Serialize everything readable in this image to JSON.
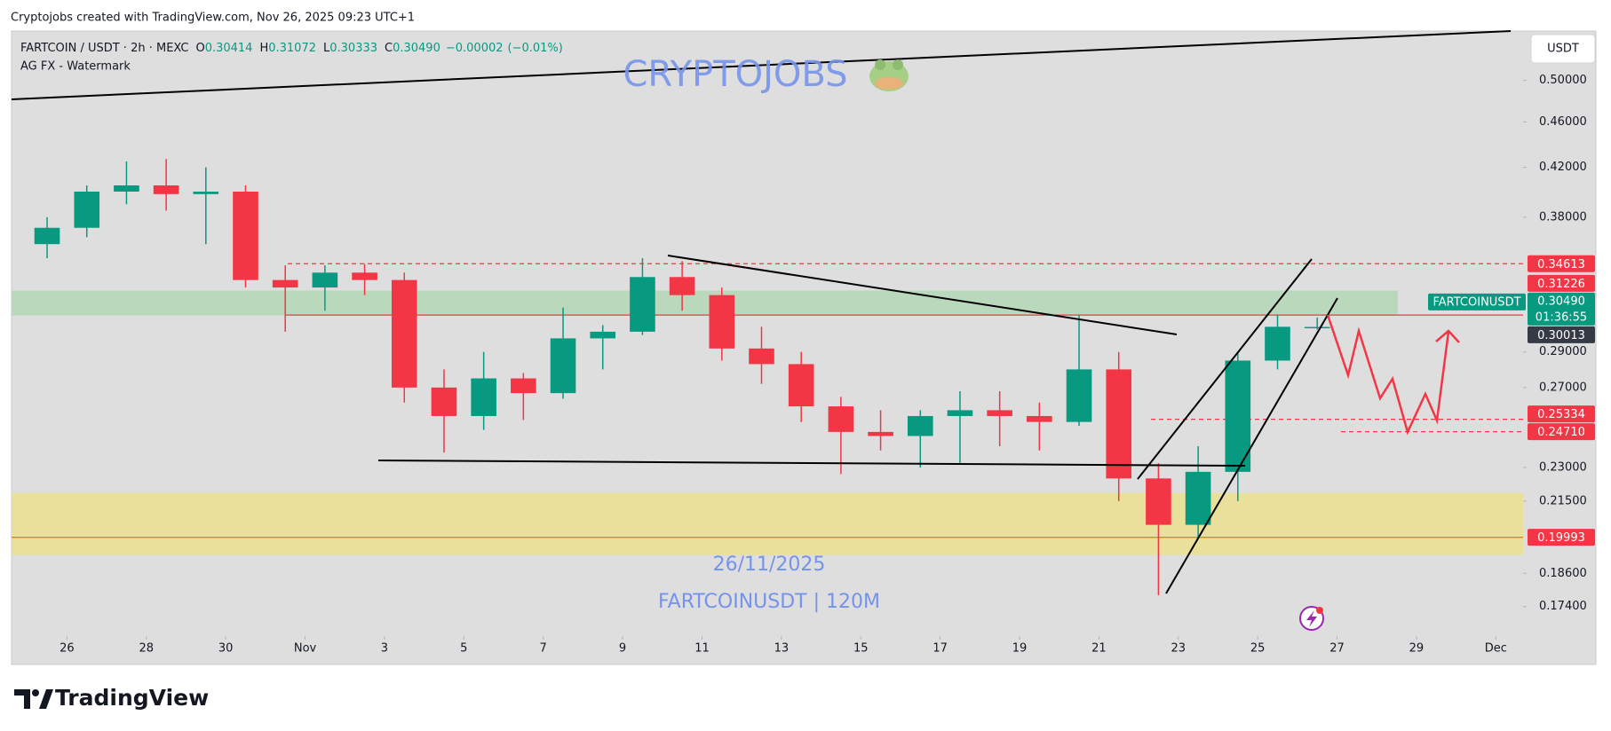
{
  "header": {
    "attribution": "Cryptojobs created with TradingView.com, Nov 26, 2025 09:23 UTC+1"
  },
  "legend": {
    "symbol": "FARTCOIN / USDT · 2h · MEXC",
    "ohlc": [
      {
        "key": "O",
        "value": 0.30414
      },
      {
        "key": "H",
        "value": 0.31072
      },
      {
        "key": "L",
        "value": 0.30333
      },
      {
        "key": "C",
        "value": 0.3049,
        "label": "0.30490"
      }
    ],
    "change": {
      "value": -2e-05,
      "label": "−0.00002"
    },
    "change_pct": {
      "value": -0.01,
      "label": "(−0.01%)"
    },
    "indicator": "AG FX - Watermark"
  },
  "watermark": {
    "brand": "CRYPTOJOBS",
    "date": "26/11/2025",
    "symbol": "FARTCOINUSDT | 120M"
  },
  "currency": "USDT",
  "footer": {
    "brand": "TradingView"
  },
  "chart_data": {
    "type": "candlestick",
    "log_scale": true,
    "up_color": "#089981",
    "down_color": "#f23645",
    "x": [
      "2025-10-25",
      "2025-10-26",
      "2025-10-27",
      "2025-10-28",
      "2025-10-29",
      "2025-10-30",
      "2025-10-31",
      "2025-11-01",
      "2025-11-02",
      "2025-11-03",
      "2025-11-04",
      "2025-11-05",
      "2025-11-06",
      "2025-11-07",
      "2025-11-08",
      "2025-11-09",
      "2025-11-10",
      "2025-11-11",
      "2025-11-12",
      "2025-11-13",
      "2025-11-14",
      "2025-11-15",
      "2025-11-16",
      "2025-11-17",
      "2025-11-18",
      "2025-11-19",
      "2025-11-20",
      "2025-11-21",
      "2025-11-22",
      "2025-11-23",
      "2025-11-24",
      "2025-11-25",
      "2025-11-26"
    ],
    "open": [
      0.36,
      0.372,
      0.4,
      0.405,
      0.398,
      0.4,
      0.335,
      0.33,
      0.34,
      0.335,
      0.27,
      0.255,
      0.275,
      0.267,
      0.298,
      0.302,
      0.337,
      0.325,
      0.292,
      0.283,
      0.26,
      0.247,
      0.245,
      0.255,
      0.258,
      0.255,
      0.252,
      0.28,
      0.225,
      0.205,
      0.228,
      0.285,
      0.30414
    ],
    "high": [
      0.38,
      0.405,
      0.425,
      0.427,
      0.42,
      0.405,
      0.345,
      0.345,
      0.346,
      0.34,
      0.28,
      0.29,
      0.278,
      0.317,
      0.306,
      0.35,
      0.348,
      0.33,
      0.305,
      0.29,
      0.265,
      0.258,
      0.258,
      0.268,
      0.268,
      0.262,
      0.312,
      0.29,
      0.232,
      0.24,
      0.29,
      0.312,
      0.31072
    ],
    "low": [
      0.35,
      0.365,
      0.39,
      0.385,
      0.36,
      0.33,
      0.302,
      0.315,
      0.325,
      0.262,
      0.237,
      0.248,
      0.253,
      0.264,
      0.28,
      0.3,
      0.315,
      0.285,
      0.272,
      0.252,
      0.227,
      0.238,
      0.23,
      0.232,
      0.24,
      0.238,
      0.25,
      0.215,
      0.178,
      0.2,
      0.215,
      0.28,
      0.30333
    ],
    "close": [
      0.372,
      0.4,
      0.405,
      0.398,
      0.4,
      0.335,
      0.33,
      0.34,
      0.335,
      0.27,
      0.255,
      0.275,
      0.267,
      0.298,
      0.302,
      0.337,
      0.325,
      0.292,
      0.283,
      0.26,
      0.247,
      0.245,
      0.255,
      0.258,
      0.255,
      0.252,
      0.28,
      0.225,
      0.205,
      0.228,
      0.285,
      0.305,
      0.3049
    ],
    "xlim": [
      "2025-10-24",
      "2025-12-02"
    ],
    "xticks": [
      {
        "value": "2025-10-26",
        "label": "26"
      },
      {
        "value": "2025-10-28",
        "label": "28"
      },
      {
        "value": "2025-10-30",
        "label": "30"
      },
      {
        "value": "2025-11-01",
        "label": "Nov"
      },
      {
        "value": "2025-11-03",
        "label": "3"
      },
      {
        "value": "2025-11-05",
        "label": "5"
      },
      {
        "value": "2025-11-07",
        "label": "7"
      },
      {
        "value": "2025-11-09",
        "label": "9"
      },
      {
        "value": "2025-11-11",
        "label": "11"
      },
      {
        "value": "2025-11-13",
        "label": "13"
      },
      {
        "value": "2025-11-15",
        "label": "15"
      },
      {
        "value": "2025-11-17",
        "label": "17"
      },
      {
        "value": "2025-11-19",
        "label": "19"
      },
      {
        "value": "2025-11-21",
        "label": "21"
      },
      {
        "value": "2025-11-23",
        "label": "23"
      },
      {
        "value": "2025-11-25",
        "label": "25"
      },
      {
        "value": "2025-11-27",
        "label": "27"
      },
      {
        "value": "2025-11-29",
        "label": "29"
      },
      {
        "value": "2025-12-01",
        "label": "Dec"
      }
    ],
    "ylim": [
      0.164,
      0.552
    ],
    "yticks": [
      {
        "value": 0.5,
        "label": "0.50000"
      },
      {
        "value": 0.46,
        "label": "0.46000"
      },
      {
        "value": 0.42,
        "label": "0.42000"
      },
      {
        "value": 0.38,
        "label": "0.38000"
      },
      {
        "value": 0.29,
        "label": "0.29000"
      },
      {
        "value": 0.27,
        "label": "0.27000"
      },
      {
        "value": 0.23,
        "label": "0.23000"
      },
      {
        "value": 0.215,
        "label": "0.21500"
      },
      {
        "value": 0.186,
        "label": "0.18600"
      },
      {
        "value": 0.174,
        "label": "0.17400"
      }
    ],
    "zones": [
      {
        "from": 0.312,
        "to": 0.328,
        "color": "#b4d8b6"
      },
      {
        "from": 0.193,
        "to": 0.2185,
        "color": "#ebe08f"
      }
    ],
    "levels": [
      {
        "value": 0.34613,
        "color": "#f23645",
        "line": "dashed"
      },
      {
        "value": 0.31226,
        "color": "#f23645",
        "line": "solid"
      },
      {
        "value": 0.30013,
        "color": "#363a45",
        "line": "none"
      },
      {
        "value": 0.25334,
        "color": "#f23645",
        "line": "dashed"
      },
      {
        "value": 0.2471,
        "label": "0.24710",
        "color": "#f23645",
        "line": "dashed"
      },
      {
        "value": 0.19993,
        "color": "#f23645",
        "line": "solid",
        "line_color": "#f57c00"
      }
    ],
    "last_price": {
      "value": 0.3049,
      "label": "0.30490",
      "symbol": "FARTCOINUSDT",
      "countdown": "01:36:55",
      "color": "#089981"
    }
  }
}
